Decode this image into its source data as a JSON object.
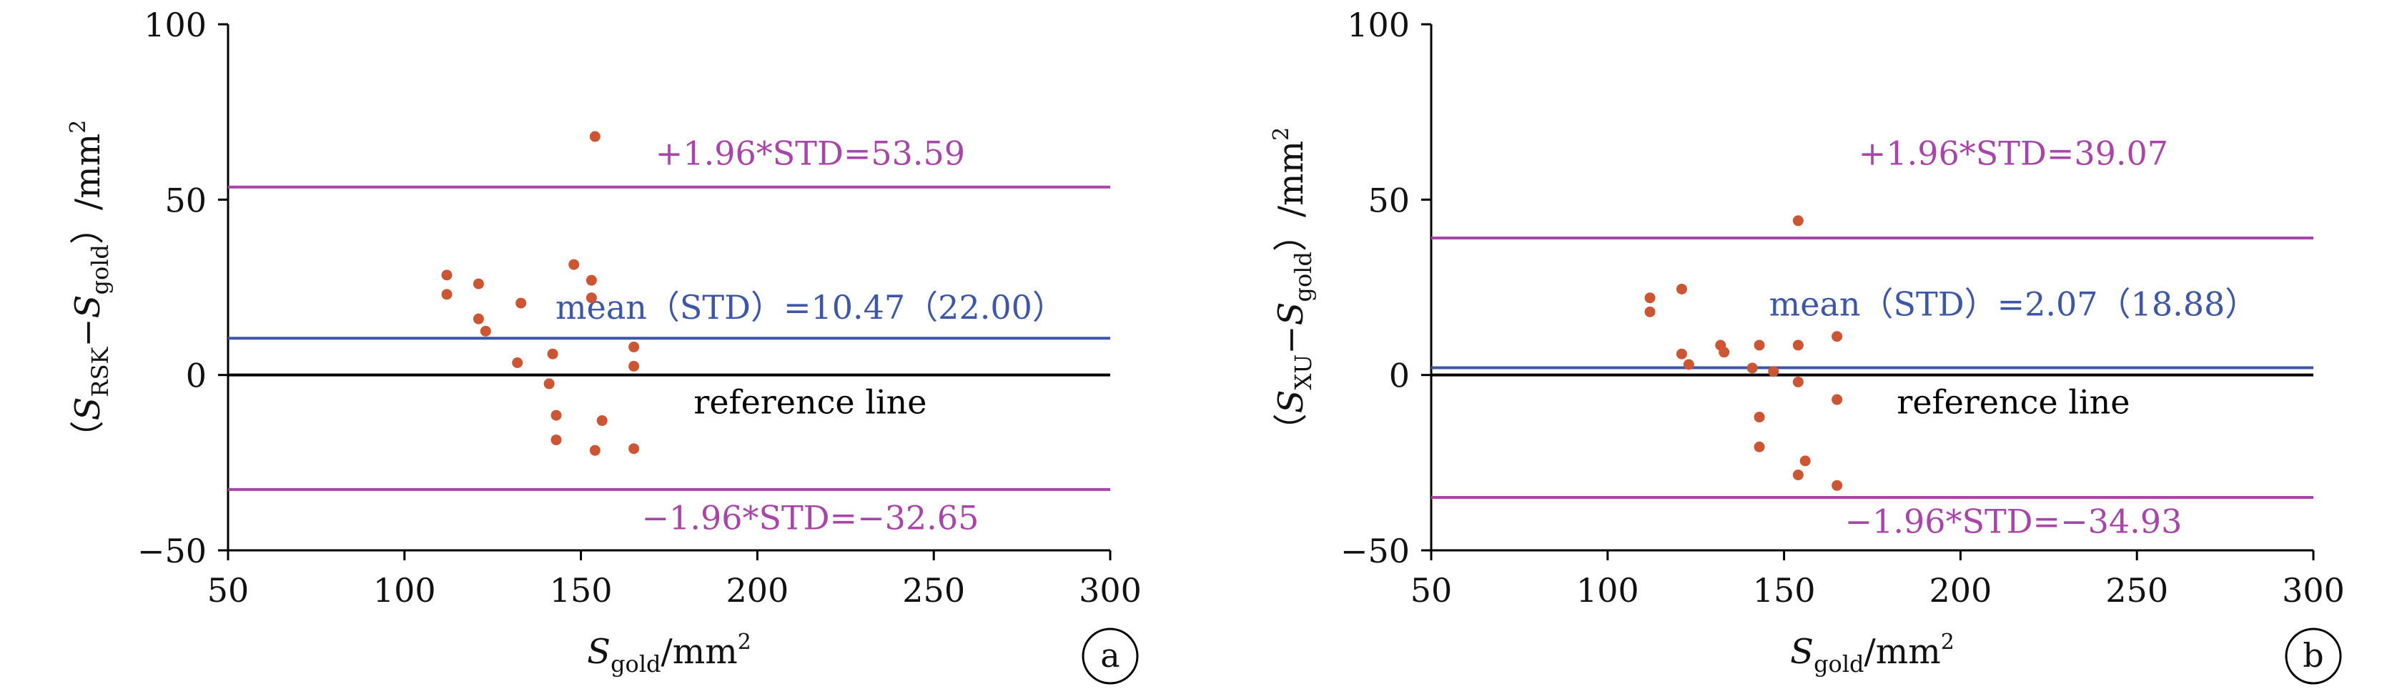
{
  "chart_data": [
    {
      "id": "a",
      "type": "scatter",
      "panel_label": "a",
      "xlabel": {
        "main": "S",
        "sub": "gold",
        "unit": "/mm",
        "sup": "2"
      },
      "ylabel": {
        "open": "（",
        "s1": "S",
        "sub1": "RSK",
        "minus": "−",
        "s2": "S",
        "sub2": "gold",
        "close": "）/mm",
        "sup": "2"
      },
      "xlim": [
        50,
        300
      ],
      "ylim": [
        -50,
        100
      ],
      "xticks": [
        50,
        100,
        150,
        200,
        250,
        300
      ],
      "yticks": [
        -50,
        0,
        50,
        100
      ],
      "xtick_labels": [
        "50",
        "100",
        "150",
        "200",
        "250",
        "300"
      ],
      "ytick_labels": [
        "−50",
        "0",
        "50",
        "100"
      ],
      "points": [
        {
          "x": 112,
          "y": 28.5
        },
        {
          "x": 112,
          "y": 23
        },
        {
          "x": 121,
          "y": 26
        },
        {
          "x": 121,
          "y": 16
        },
        {
          "x": 123,
          "y": 12.5
        },
        {
          "x": 133,
          "y": 20.5
        },
        {
          "x": 132,
          "y": 3.5
        },
        {
          "x": 141,
          "y": -2.5
        },
        {
          "x": 142,
          "y": 6
        },
        {
          "x": 143,
          "y": -11.5
        },
        {
          "x": 143,
          "y": -18.5
        },
        {
          "x": 148,
          "y": 31.5
        },
        {
          "x": 153,
          "y": 27
        },
        {
          "x": 153,
          "y": 22
        },
        {
          "x": 154,
          "y": 68
        },
        {
          "x": 154,
          "y": -21.5
        },
        {
          "x": 156,
          "y": -13
        },
        {
          "x": 165,
          "y": 8
        },
        {
          "x": 165,
          "y": 2.5
        },
        {
          "x": 165,
          "y": -21
        }
      ],
      "lines": [
        {
          "name": "upper",
          "y": 53.59,
          "label": "+1.96*STD=53.59",
          "label_x": 215,
          "label_y": 60,
          "color": "#a845a8"
        },
        {
          "name": "mean",
          "y": 10.47,
          "label": "mean（STD）=10.47（22.00）",
          "label_x": 215,
          "label_y": 16,
          "color": "#3d57a6"
        },
        {
          "name": "reference",
          "y": 0,
          "label": "reference line",
          "label_x": 215,
          "label_y": -11,
          "color": "#000000"
        },
        {
          "name": "lower",
          "y": -32.65,
          "label": "−1.96*STD=−32.65",
          "label_x": 215,
          "label_y": -44,
          "color": "#a845a8"
        }
      ],
      "point_color": "#cc5533"
    },
    {
      "id": "b",
      "type": "scatter",
      "panel_label": "b",
      "xlabel": {
        "main": "S",
        "sub": "gold",
        "unit": "/mm",
        "sup": "2"
      },
      "ylabel": {
        "open": "（",
        "s1": "S",
        "sub1": "XU",
        "minus": "−",
        "s2": "S",
        "sub2": "gold",
        "close": "）/mm",
        "sup": "2"
      },
      "xlim": [
        50,
        300
      ],
      "ylim": [
        -50,
        100
      ],
      "xticks": [
        50,
        100,
        150,
        200,
        250,
        300
      ],
      "yticks": [
        -50,
        0,
        50,
        100
      ],
      "xtick_labels": [
        "50",
        "100",
        "150",
        "200",
        "250",
        "300"
      ],
      "ytick_labels": [
        "−50",
        "0",
        "50",
        "100"
      ],
      "points": [
        {
          "x": 112,
          "y": 22
        },
        {
          "x": 112,
          "y": 18
        },
        {
          "x": 121,
          "y": 24.5
        },
        {
          "x": 121,
          "y": 6
        },
        {
          "x": 123,
          "y": 3
        },
        {
          "x": 132,
          "y": 8.5
        },
        {
          "x": 133,
          "y": 6.5
        },
        {
          "x": 141,
          "y": 2
        },
        {
          "x": 143,
          "y": 8.5
        },
        {
          "x": 143,
          "y": -12
        },
        {
          "x": 143,
          "y": -20.5
        },
        {
          "x": 147,
          "y": 1
        },
        {
          "x": 154,
          "y": 44
        },
        {
          "x": 154,
          "y": 8.5
        },
        {
          "x": 154,
          "y": -2
        },
        {
          "x": 154,
          "y": -28.5
        },
        {
          "x": 156,
          "y": -24.5
        },
        {
          "x": 165,
          "y": 11
        },
        {
          "x": 165,
          "y": -7
        },
        {
          "x": 165,
          "y": -31.5
        }
      ],
      "lines": [
        {
          "name": "upper",
          "y": 39.07,
          "label": "+1.96*STD=39.07",
          "label_x": 215,
          "label_y": 60,
          "color": "#a845a8"
        },
        {
          "name": "mean",
          "y": 2.07,
          "label": "mean（STD）=2.07（18.88）",
          "label_x": 215,
          "label_y": 17,
          "color": "#3d57a6"
        },
        {
          "name": "reference",
          "y": 0,
          "label": "reference line",
          "label_x": 215,
          "label_y": -11,
          "color": "#000000"
        },
        {
          "name": "lower",
          "y": -34.93,
          "label": "−1.96*STD=−34.93",
          "label_x": 215,
          "label_y": -45,
          "color": "#a845a8"
        }
      ],
      "point_color": "#cc5533"
    }
  ]
}
